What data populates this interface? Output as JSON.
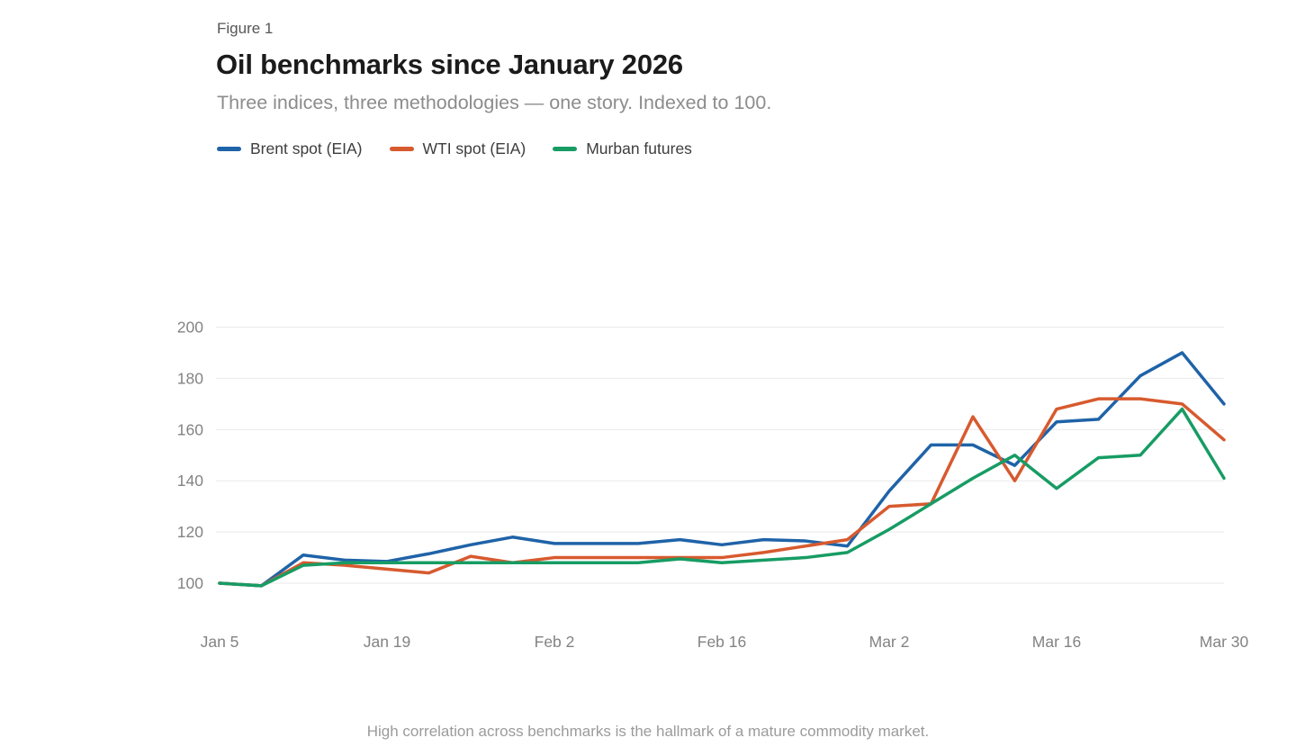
{
  "header": {
    "figure_label": "Figure 1"
  },
  "footnote": {
    "text": "High correlation across benchmarks is the hallmark of a mature commodity market."
  },
  "colors": {
    "grid": "#e9e9e9",
    "axis_text": "#838383",
    "title_text": "#1b1b1b",
    "subtitle_text": "#8c8c8c"
  },
  "chart_data": {
    "type": "line",
    "title": "Oil benchmarks since January 2026",
    "subtitle": "Three indices, three methodologies — one story. Indexed to 100.",
    "xlabel": "",
    "ylabel": "",
    "x": [
      "Jan 5",
      "Jan 8",
      "Jan 12",
      "Jan 15",
      "Jan 19",
      "Jan 22",
      "Jan 26",
      "Jan 29",
      "Feb 2",
      "Feb 5",
      "Feb 9",
      "Feb 12",
      "Feb 16",
      "Feb 19",
      "Feb 23",
      "Feb 26",
      "Mar 2",
      "Mar 5",
      "Mar 9",
      "Mar 12",
      "Mar 16",
      "Mar 19",
      "Mar 23",
      "Mar 26",
      "Mar 30"
    ],
    "x_tick_indices": [
      0,
      4,
      8,
      12,
      16,
      20,
      24
    ],
    "y_ticks": [
      100,
      120,
      140,
      160,
      180,
      200
    ],
    "ylim": [
      95,
      205
    ],
    "grid": "horizontal",
    "legend_position": "top-left",
    "series": [
      {
        "name": "Brent spot (EIA)",
        "color": "#1f63a8",
        "values": [
          100,
          99,
          111,
          109,
          108.5,
          111.5,
          115,
          118,
          115.5,
          115.5,
          115.5,
          117,
          115,
          117,
          116.5,
          114.5,
          136,
          154,
          154,
          146,
          163,
          164,
          181,
          190,
          170
        ]
      },
      {
        "name": "WTI spot (EIA)",
        "color": "#d75a2e",
        "values": [
          100,
          99,
          108,
          107,
          105.5,
          104,
          110.5,
          108,
          110,
          110,
          110,
          110,
          110,
          112,
          114.5,
          117,
          130,
          131,
          165,
          140,
          168,
          172,
          172,
          170,
          156
        ]
      },
      {
        "name": "Murban futures",
        "color": "#179c64",
        "values": [
          100,
          99,
          107,
          108,
          108,
          108,
          108,
          108,
          108,
          108,
          108,
          109.5,
          108,
          109,
          110,
          112,
          121,
          131,
          141,
          150,
          137,
          149,
          150,
          168,
          141
        ]
      }
    ]
  }
}
